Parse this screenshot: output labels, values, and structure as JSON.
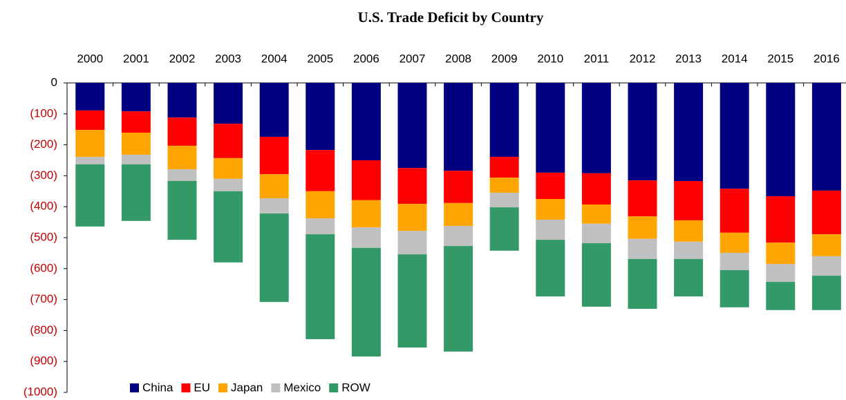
{
  "chart_data": {
    "type": "stacked_bar",
    "title": "U.S. Trade Deficit by Country",
    "categories": [
      "2000",
      "2001",
      "2002",
      "2003",
      "2004",
      "2005",
      "2006",
      "2007",
      "2008",
      "2009",
      "2010",
      "2011",
      "2012",
      "2013",
      "2014",
      "2015",
      "2016"
    ],
    "series": [
      {
        "name": "China",
        "color": "#000080",
        "values": [
          -89,
          -92,
          -112,
          -132,
          -174,
          -217,
          -250,
          -275,
          -284,
          -239,
          -290,
          -292,
          -315,
          -317,
          -342,
          -366,
          -348
        ]
      },
      {
        "name": "EU",
        "color": "#ff0000",
        "values": [
          -63,
          -69,
          -91,
          -111,
          -121,
          -133,
          -129,
          -116,
          -104,
          -67,
          -85,
          -101,
          -116,
          -127,
          -142,
          -150,
          -141
        ]
      },
      {
        "name": "Japan",
        "color": "#ffa500",
        "values": [
          -87,
          -71,
          -76,
          -67,
          -78,
          -88,
          -88,
          -87,
          -74,
          -49,
          -67,
          -62,
          -73,
          -69,
          -65,
          -69,
          -71
        ]
      },
      {
        "name": "Mexico",
        "color": "#c0c0c0",
        "values": [
          -24,
          -31,
          -38,
          -40,
          -49,
          -51,
          -66,
          -76,
          -65,
          -47,
          -65,
          -63,
          -65,
          -56,
          -56,
          -58,
          -63
        ]
      },
      {
        "name": "ROW",
        "color": "#339966",
        "values": [
          -201,
          -183,
          -190,
          -230,
          -286,
          -339,
          -351,
          -301,
          -341,
          -140,
          -183,
          -205,
          -161,
          -121,
          -120,
          -91,
          -111
        ]
      }
    ],
    "ylim": [
      -1000,
      0
    ],
    "yticks": [
      0,
      {
        "value": -100,
        "label": "(100)"
      },
      {
        "value": -200,
        "label": "(200)"
      },
      {
        "value": -300,
        "label": "(300)"
      },
      {
        "value": -400,
        "label": "(400)"
      },
      {
        "value": -500,
        "label": "(500)"
      },
      {
        "value": -600,
        "label": "(600)"
      },
      {
        "value": -700,
        "label": "(700)"
      },
      {
        "value": -800,
        "label": "(800)"
      },
      {
        "value": -900,
        "label": "(900)"
      },
      {
        "value": -1000,
        "label": "(1000)"
      }
    ],
    "legend": "bottom-left"
  }
}
